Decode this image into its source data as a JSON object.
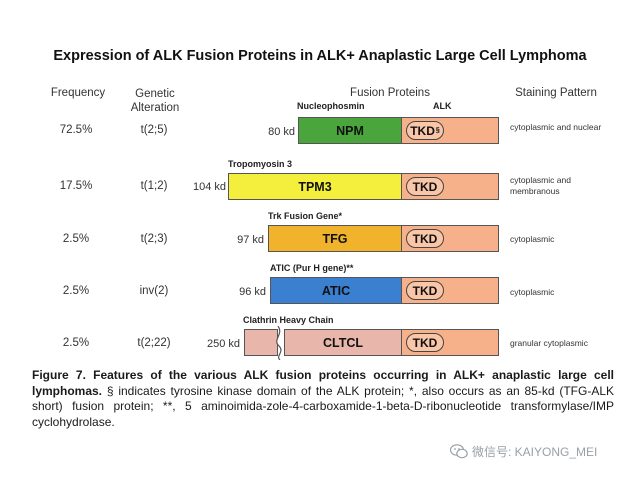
{
  "title": "Expression of ALK Fusion Proteins in ALK+ Anaplastic Large Cell Lymphoma",
  "headers": {
    "frequency": "Frequency",
    "genetic_alteration_line1": "Genetic",
    "genetic_alteration_line2": "Alteration",
    "fusion_proteins": "Fusion Proteins",
    "staining_pattern": "Staining Pattern"
  },
  "alk_label": "ALK",
  "tkd_label": "TKD",
  "tkd_mark": "§",
  "rows": [
    {
      "frequency": "72.5%",
      "alteration": "t(2;5)",
      "mw": "80 kd",
      "partner": "NPM",
      "partner_name": "Nucleophosmin",
      "color": "#4aa53c",
      "staining": "cytoplasmic and nuclear"
    },
    {
      "frequency": "17.5%",
      "alteration": "t(1;2)",
      "mw": "104 kd",
      "partner": "TPM3",
      "partner_name": "Tropomyosin 3",
      "color": "#f4ee3c",
      "staining": "cytoplasmic and membranous"
    },
    {
      "frequency": "2.5%",
      "alteration": "t(2;3)",
      "mw": "97 kd",
      "partner": "TFG",
      "partner_name": "Trk Fusion Gene*",
      "color": "#f2b32c",
      "staining": "cytoplasmic"
    },
    {
      "frequency": "2.5%",
      "alteration": "inv(2)",
      "mw": "96 kd",
      "partner": "ATIC",
      "partner_name": "ATIC (Pur H gene)**",
      "color": "#3a7fd0",
      "staining": "cytoplasmic"
    },
    {
      "frequency": "2.5%",
      "alteration": "t(2;22)",
      "mw": "250 kd",
      "partner": "CLTCL",
      "partner_name": "Clathrin Heavy Chain",
      "color": "#e8b6ab",
      "staining": "granular cytoplasmic"
    }
  ],
  "caption": {
    "bold": "Figure 7. Features of the various ALK fusion proteins occurring in ALK+ anaplastic large cell lymphomas.",
    "text": " § indicates tyrosine kinase domain of the ALK protein; *, also occurs as an 85-kd (TFG-ALK short) fusion protein; **, 5 aminoimida-zole-4-carboxamide-1-beta-D-ribonucleotide transformylase/IMP cyclohydrolase."
  },
  "watermark": "微信号: KAIYONG_MEI",
  "watermark_icon": "wechat-icon"
}
